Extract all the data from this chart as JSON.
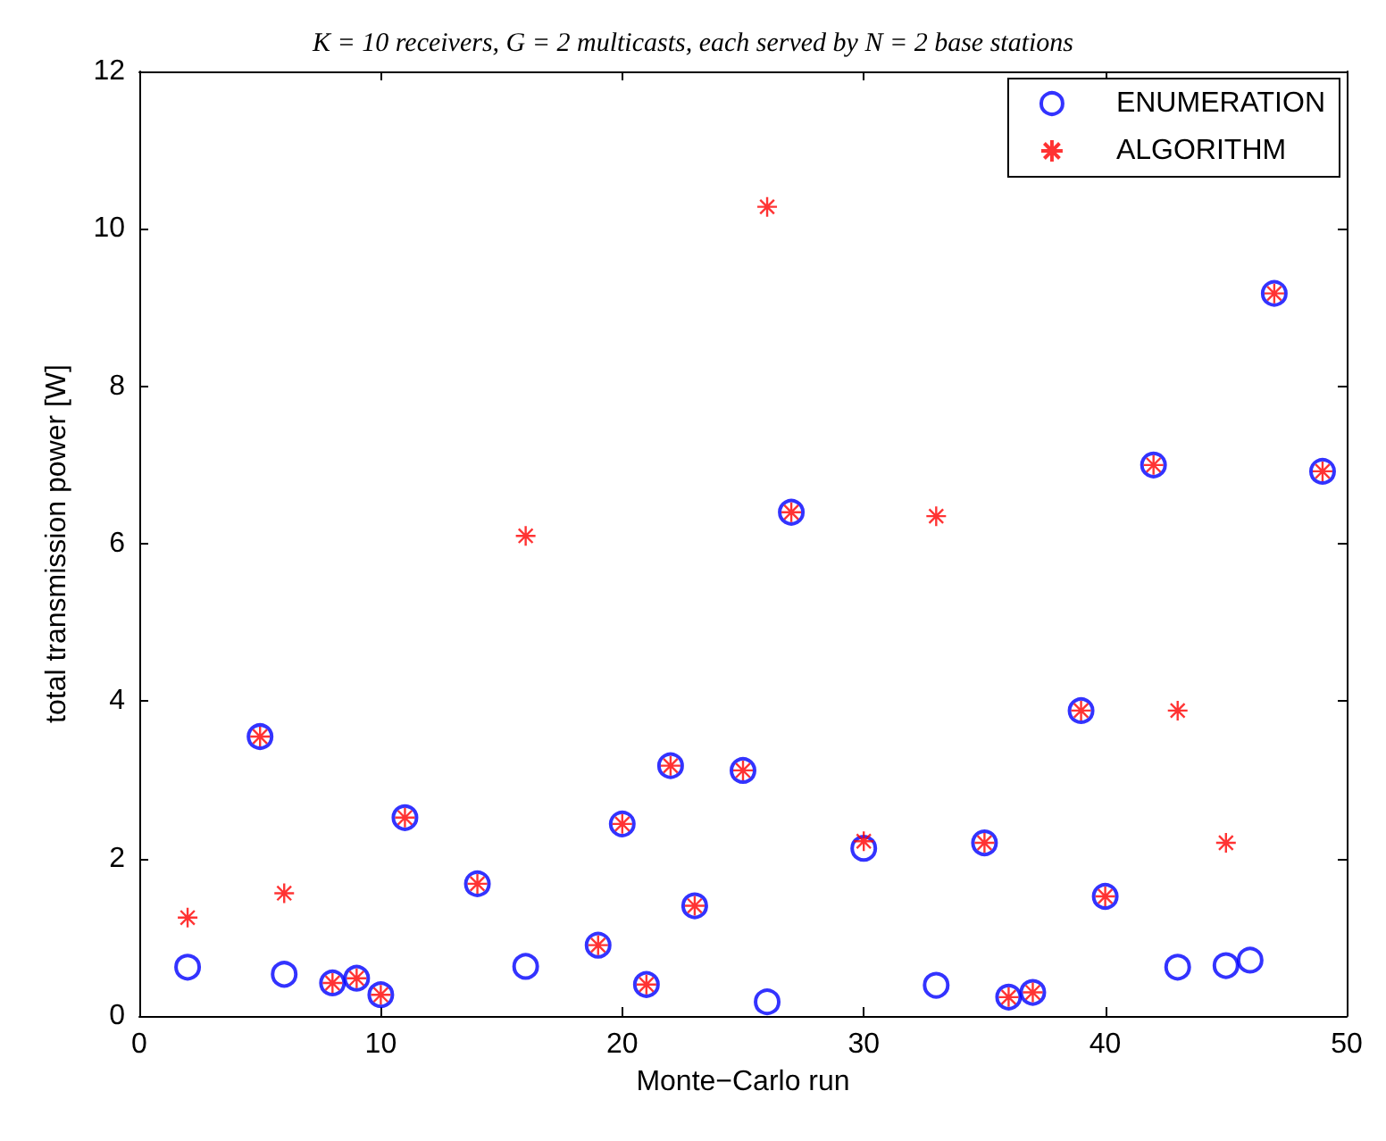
{
  "chart_data": {
    "type": "scatter",
    "title": "K = 10 receivers, G = 2 multicasts, each served by N = 2 base stations",
    "xlabel": "Monte−Carlo run",
    "ylabel": "total transmission power [W]",
    "xlim": [
      0,
      50
    ],
    "xticks": [
      0,
      10,
      20,
      30,
      40,
      50
    ],
    "ylim": [
      0,
      12
    ],
    "yticks": [
      0,
      2,
      4,
      6,
      8,
      10,
      12
    ],
    "grid": false,
    "legend": "top right",
    "series": [
      {
        "name": "ENUMERATION",
        "color": "#0000ff",
        "marker": "circle",
        "x": [
          2,
          5,
          6,
          8,
          9,
          10,
          11,
          14,
          16,
          19,
          20,
          21,
          22,
          23,
          25,
          26,
          27,
          30,
          33,
          35,
          36,
          37,
          39,
          40,
          42,
          43,
          45,
          46,
          47,
          49
        ],
        "values": [
          0.62,
          3.55,
          0.53,
          0.42,
          0.48,
          0.27,
          2.52,
          1.68,
          0.63,
          0.9,
          2.44,
          0.4,
          3.18,
          1.4,
          3.12,
          0.18,
          6.4,
          2.13,
          0.39,
          2.2,
          0.24,
          0.3,
          3.88,
          1.52,
          7.0,
          0.62,
          0.64,
          0.71,
          9.18,
          6.92
        ]
      },
      {
        "name": "ALGORITHM",
        "color": "#ff0000",
        "marker": "cross",
        "x": [
          2,
          5,
          6,
          8,
          9,
          10,
          11,
          14,
          16,
          19,
          20,
          21,
          22,
          23,
          25,
          26,
          27,
          30,
          33,
          35,
          36,
          37,
          39,
          40,
          42,
          43,
          45,
          47,
          49
        ],
        "values": [
          1.25,
          3.55,
          1.56,
          0.42,
          0.48,
          0.27,
          2.52,
          1.68,
          6.1,
          0.9,
          2.44,
          0.4,
          3.18,
          1.4,
          3.12,
          10.28,
          6.4,
          2.22,
          6.35,
          2.2,
          0.24,
          0.3,
          3.88,
          1.52,
          7.0,
          3.88,
          2.2,
          9.18,
          6.92
        ]
      }
    ]
  }
}
